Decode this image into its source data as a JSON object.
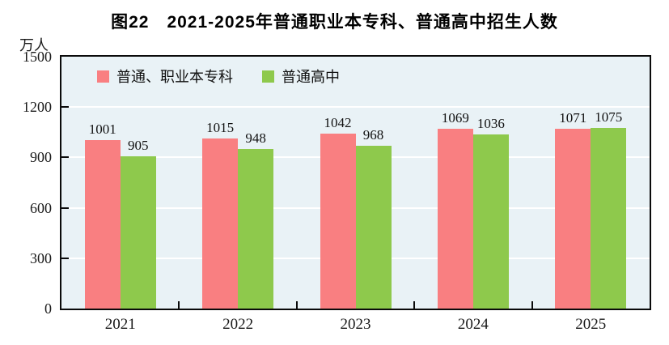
{
  "chart_data": {
    "type": "bar",
    "title": "图22　2021-2025年普通职业本专科、普通高中招生人数",
    "unit": "万人",
    "categories": [
      "2021",
      "2022",
      "2023",
      "2024",
      "2025"
    ],
    "series": [
      {
        "name": "普通、职业本专科",
        "color": "#f97f81",
        "values": [
          1001,
          1015,
          1042,
          1069,
          1071
        ]
      },
      {
        "name": "普通高中",
        "color": "#8ec94c",
        "values": [
          905,
          948,
          968,
          1036,
          1075
        ]
      }
    ],
    "ylim": [
      0,
      1500
    ],
    "yticks": [
      0,
      300,
      600,
      900,
      1200,
      1500
    ],
    "grid": true,
    "gridline_color": "#ffffff",
    "plot_background": "#e9f2f6",
    "frame_color": "#0a0a0a",
    "legend_position": "top-left-inside",
    "value_labels": true
  }
}
